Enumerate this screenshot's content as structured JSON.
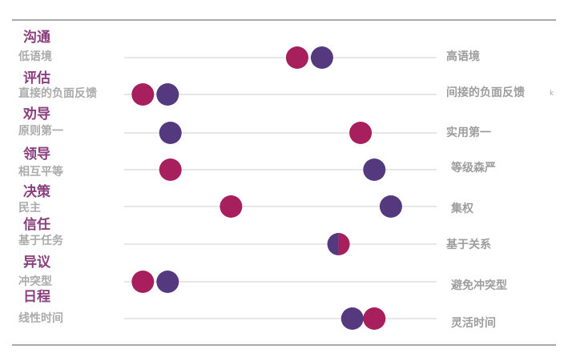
{
  "chart_data": {
    "type": "scatter",
    "title": "",
    "xlabel": "",
    "ylabel": "",
    "xlim": [
      0,
      100
    ],
    "grid": false,
    "legend": "none",
    "colors": {
      "magenta": "#a81f5d",
      "purple": "#55397f",
      "category": "#8a3e7d",
      "left_label": "#ababab",
      "right_label": "#9d9d9d",
      "line": "#dfdfdf",
      "frame": "#a9a9a9"
    },
    "rows": [
      {
        "category": "沟通",
        "left": "低语境",
        "right": "高语境",
        "magenta": 59,
        "purple": 68
      },
      {
        "category": "评估",
        "left": "直接的负面反馈",
        "right": "间接的负面反馈",
        "magenta": 3,
        "purple": 12
      },
      {
        "category": "劝导",
        "left": "原则第一",
        "right": "实用第一",
        "magenta": 82,
        "purple": 13
      },
      {
        "category": "领导",
        "left": "相互平等",
        "right": "等级森严",
        "magenta": 13,
        "purple": 87
      },
      {
        "category": "决策",
        "left": "民主",
        "right": "集权",
        "magenta": 35,
        "purple": 93
      },
      {
        "category": "信任",
        "left": "基于任务",
        "right": "基于关系",
        "magenta": 74,
        "purple": 74
      },
      {
        "category": "异议",
        "left": "冲突型",
        "right": "避免冲突型",
        "magenta": 3,
        "purple": 12
      },
      {
        "category": "日程",
        "left": "线性时间",
        "right": "灵活时间",
        "magenta": 87,
        "purple": 79
      }
    ]
  },
  "stray_text": "k"
}
